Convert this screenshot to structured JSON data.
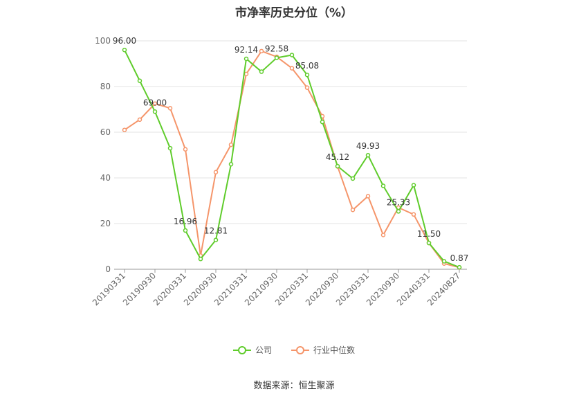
{
  "chart_data": {
    "type": "line",
    "title": "市净率历史分位（%）",
    "ylim": [
      0,
      100
    ],
    "yticks": [
      0,
      20,
      40,
      60,
      80,
      100
    ],
    "x_labels": [
      "20190331",
      "20190930",
      "20200331",
      "20200930",
      "20210331",
      "20210930",
      "20220331",
      "20220930",
      "20230331",
      "20230930",
      "20240331",
      "20240827"
    ],
    "x_label_positions": [
      0,
      2,
      4,
      6,
      8,
      10,
      12,
      14,
      16,
      18,
      20,
      22
    ],
    "series": [
      {
        "name": "公司",
        "color": "#5fcc2b",
        "values": [
          96.0,
          82.5,
          69.0,
          53.0,
          16.96,
          4.5,
          12.81,
          46.0,
          92.14,
          86.5,
          92.58,
          93.8,
          85.08,
          64.5,
          45.12,
          39.7,
          49.93,
          36.5,
          25.33,
          36.8,
          11.5,
          3.5,
          0.87
        ],
        "labels": {
          "0": "96.00",
          "2": "69.00",
          "4": "16.96",
          "6": "12.81",
          "8": "92.14",
          "10": "92.58",
          "12": "85.08",
          "14": "45.12",
          "16": "49.93",
          "18": "25.33",
          "20": "11.50",
          "22": "0.87"
        }
      },
      {
        "name": "行业中位数",
        "color": "#f5956a",
        "values": [
          61.0,
          65.5,
          72.5,
          70.5,
          52.5,
          6.0,
          42.5,
          54.5,
          85.5,
          95.5,
          93.0,
          88.0,
          79.5,
          67.0,
          45.0,
          26.0,
          32.0,
          15.0,
          27.0,
          24.0,
          11.5,
          2.5,
          0.8
        ]
      }
    ],
    "legend_position": "bottom",
    "grid": true
  },
  "source": "数据来源：恒生聚源"
}
